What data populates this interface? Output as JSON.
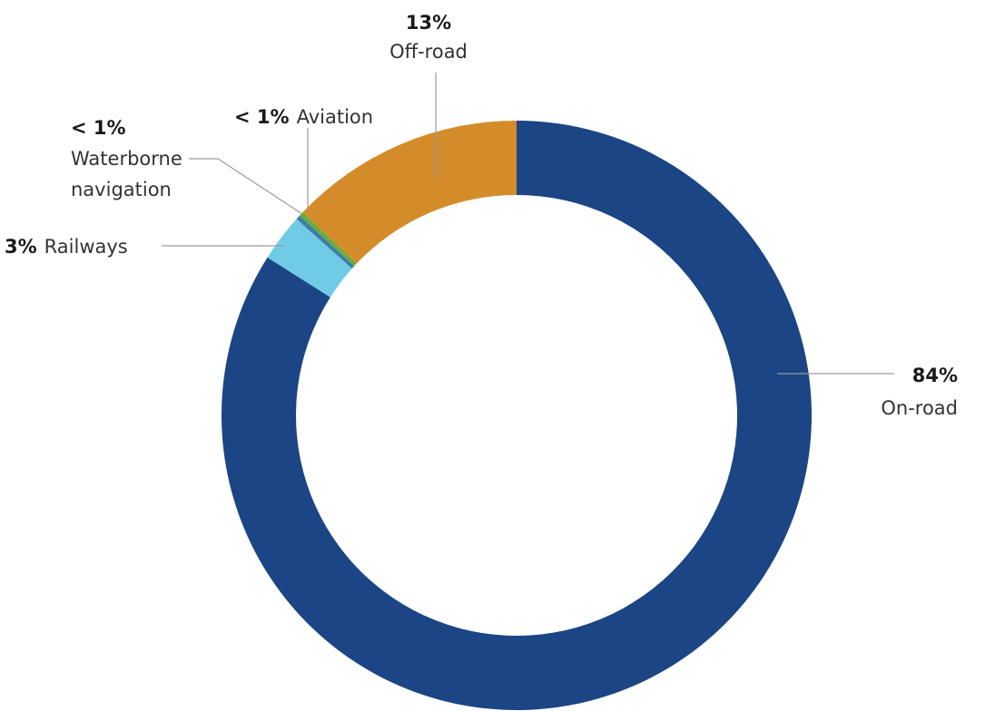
{
  "chart_data": {
    "type": "pie",
    "variant": "donut",
    "slices": [
      {
        "key": "onroad",
        "pct": "84%",
        "label": "On-road",
        "value": 84.0,
        "color": "#1b4585"
      },
      {
        "key": "railways",
        "pct": "3%",
        "label": "Railways",
        "value": 2.6,
        "color": "#6fcbe6"
      },
      {
        "key": "waterborne",
        "pct": "< 1%",
        "label": "Waterborne navigation",
        "label_lines": [
          "Waterborne",
          "navigation"
        ],
        "value": 0.25,
        "color": "#3a7fa8"
      },
      {
        "key": "aviation",
        "pct": "< 1%",
        "label": "Aviation",
        "value": 0.25,
        "color": "#6aab3c"
      },
      {
        "key": "offroad",
        "pct": "13%",
        "label": "Off-road",
        "value": 12.9,
        "color": "#d48c2b"
      }
    ]
  }
}
